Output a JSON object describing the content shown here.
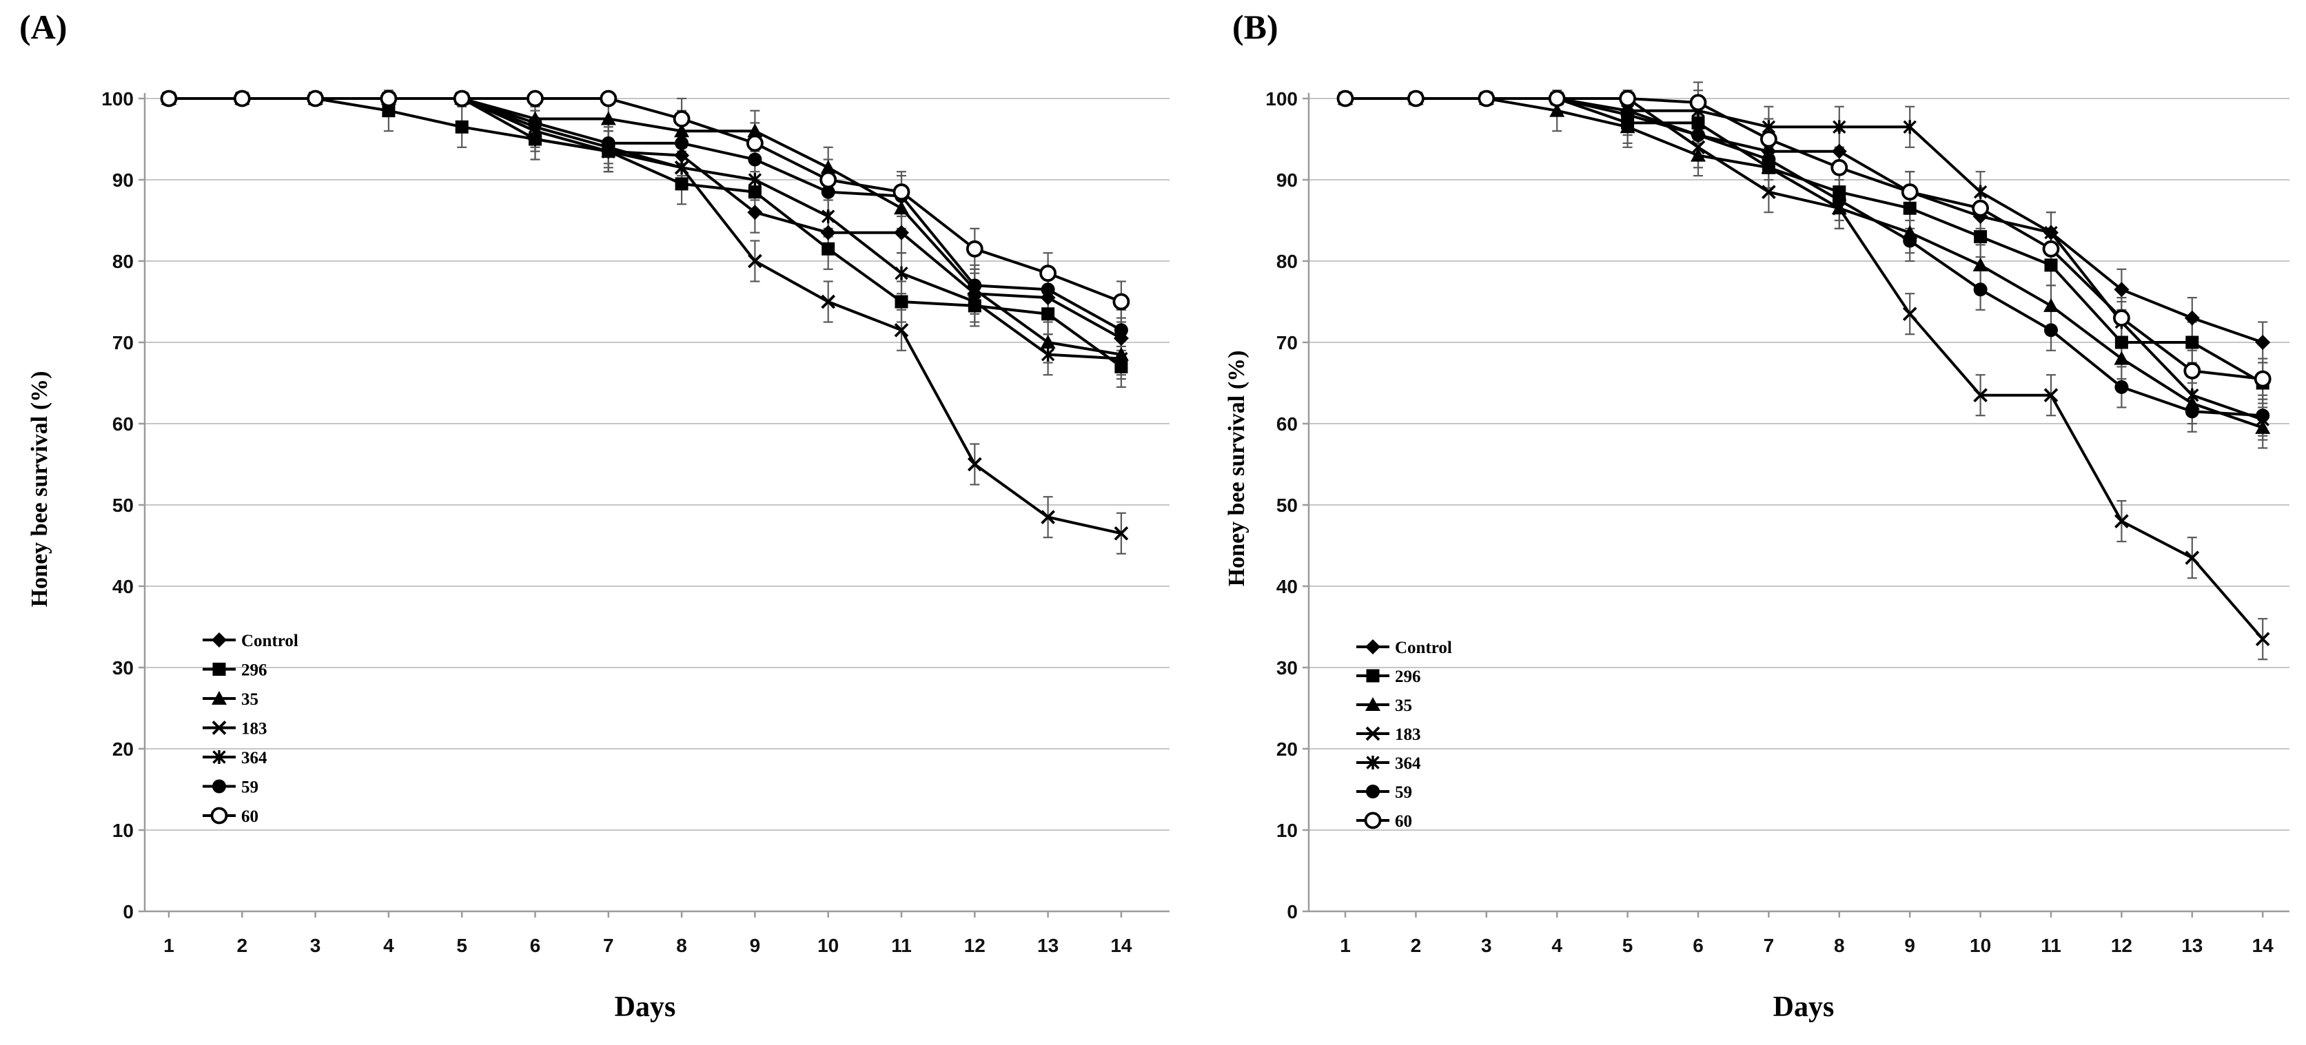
{
  "figure": {
    "background": "#ffffff",
    "panels": [
      {
        "panel_label": "(A)",
        "chart_data": {
          "type": "line",
          "title": "",
          "xlabel": "Days",
          "ylabel": "Honey bee survival (%)",
          "x": [
            1,
            2,
            3,
            4,
            5,
            6,
            7,
            8,
            9,
            10,
            11,
            12,
            13,
            14
          ],
          "x_tick_labels": [
            "1",
            "2",
            "3",
            "4",
            "5",
            "6",
            "7",
            "8",
            "9",
            "10",
            "11",
            "12",
            "13",
            "14"
          ],
          "y_tick_labels": [
            "0",
            "10",
            "20",
            "30",
            "40",
            "50",
            "60",
            "70",
            "80",
            "90",
            "100"
          ],
          "ylim": [
            0,
            100
          ],
          "grid": "horizontal",
          "legend_position": "inside-left-middle",
          "error_bars": {
            "shown": true,
            "approx_half_height_pct": 2.5
          },
          "line_color": "#000000",
          "gridline_color": "#c6c6c6",
          "axis_color": "#9b9b9b",
          "error_bar_color": "#595959",
          "series": [
            {
              "name": "Control",
              "marker": "diamond-filled",
              "values": [
                100,
                100,
                100,
                100,
                100,
                95,
                93.5,
                93,
                86,
                83.5,
                83.5,
                76,
                75.5,
                70.5
              ]
            },
            {
              "name": "296",
              "marker": "square-filled",
              "values": [
                100,
                100,
                100,
                98.5,
                96.5,
                95,
                93.5,
                89.5,
                88.5,
                81.5,
                75,
                74.5,
                73.5,
                67
              ]
            },
            {
              "name": "35",
              "marker": "triangle-filled",
              "values": [
                100,
                100,
                100,
                100,
                100,
                97.5,
                97.5,
                96,
                96,
                91.5,
                86.5,
                76.5,
                70,
                68.5
              ]
            },
            {
              "name": "183",
              "marker": "x",
              "values": [
                100,
                100,
                100,
                100,
                100,
                96,
                93.5,
                91.5,
                80,
                75,
                71.5,
                55,
                48.5,
                46.5
              ]
            },
            {
              "name": "364",
              "marker": "asterisk",
              "values": [
                100,
                100,
                100,
                100,
                100,
                96.5,
                94,
                91.5,
                90,
                85.5,
                78.5,
                75,
                68.5,
                68
              ]
            },
            {
              "name": "59",
              "marker": "circle-filled",
              "values": [
                100,
                100,
                100,
                100,
                100,
                97,
                94.5,
                94.5,
                92.5,
                88.5,
                88,
                77,
                76.5,
                71.5
              ]
            },
            {
              "name": "60",
              "marker": "circle-open",
              "values": [
                100,
                100,
                100,
                100,
                100,
                100,
                100,
                97.5,
                94.5,
                90,
                88.5,
                81.5,
                78.5,
                75
              ]
            }
          ]
        }
      },
      {
        "panel_label": "(B)",
        "chart_data": {
          "type": "line",
          "title": "",
          "xlabel": "Days",
          "ylabel": "Honey bee survival (%)",
          "x": [
            1,
            2,
            3,
            4,
            5,
            6,
            7,
            8,
            9,
            10,
            11,
            12,
            13,
            14
          ],
          "x_tick_labels": [
            "1",
            "2",
            "3",
            "4",
            "5",
            "6",
            "7",
            "8",
            "9",
            "10",
            "11",
            "12",
            "13",
            "14"
          ],
          "y_tick_labels": [
            "0",
            "10",
            "20",
            "30",
            "40",
            "50",
            "60",
            "70",
            "80",
            "90",
            "100"
          ],
          "ylim": [
            0,
            100
          ],
          "grid": "horizontal",
          "legend_position": "inside-left-middle",
          "error_bars": {
            "shown": true,
            "approx_half_height_pct": 2.5
          },
          "line_color": "#000000",
          "gridline_color": "#c6c6c6",
          "axis_color": "#9b9b9b",
          "error_bar_color": "#595959",
          "series": [
            {
              "name": "Control",
              "marker": "diamond-filled",
              "values": [
                100,
                100,
                100,
                100,
                98.5,
                95.5,
                93.5,
                93.5,
                88.5,
                85.5,
                83.5,
                76.5,
                73,
                70
              ]
            },
            {
              "name": "296",
              "marker": "square-filled",
              "values": [
                100,
                100,
                100,
                100,
                97,
                97,
                91.5,
                88.5,
                86.5,
                83,
                79.5,
                70,
                70,
                65
              ]
            },
            {
              "name": "35",
              "marker": "triangle-filled",
              "values": [
                100,
                100,
                100,
                98.5,
                96.5,
                93,
                91.5,
                86.5,
                83.5,
                79.5,
                74.5,
                68,
                62.5,
                59.5
              ]
            },
            {
              "name": "183",
              "marker": "x",
              "values": [
                100,
                100,
                100,
                100,
                100,
                94,
                88.5,
                86.5,
                73.5,
                63.5,
                63.5,
                48,
                43.5,
                33.5
              ]
            },
            {
              "name": "364",
              "marker": "asterisk",
              "values": [
                100,
                100,
                100,
                100,
                98.5,
                98.5,
                96.5,
                96.5,
                96.5,
                88.5,
                83.5,
                72.5,
                63.5,
                60.5
              ]
            },
            {
              "name": "59",
              "marker": "circle-filled",
              "values": [
                100,
                100,
                100,
                100,
                98,
                95.5,
                92.5,
                87.5,
                82.5,
                76.5,
                71.5,
                64.5,
                61.5,
                61
              ]
            },
            {
              "name": "60",
              "marker": "circle-open",
              "values": [
                100,
                100,
                100,
                100,
                100,
                99.5,
                95,
                91.5,
                88.5,
                86.5,
                81.5,
                73,
                66.5,
                65.5
              ]
            }
          ]
        }
      }
    ]
  }
}
